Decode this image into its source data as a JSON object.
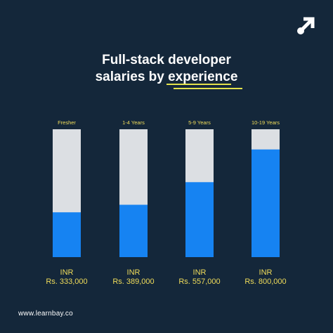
{
  "brand": {
    "logo_icon": "arrow-up-right-icon",
    "footer_url": "www.learnbay.co"
  },
  "chart_data": {
    "type": "bar",
    "title_line1": "Full-stack developer",
    "title_line2": "salaries by experience",
    "categories": [
      "Fresher",
      "1-4 Years",
      "5-9 Years",
      "10-19 Years"
    ],
    "values": [
      333000,
      389000,
      557000,
      800000
    ],
    "value_labels": [
      [
        "INR",
        "Rs. 333,000"
      ],
      [
        "INR",
        "Rs. 389,000"
      ],
      [
        "INR",
        "Rs. 557,000"
      ],
      [
        "INR",
        "Rs. 800,000"
      ]
    ],
    "ylim": [
      0,
      950000
    ],
    "grid": false,
    "colors": {
      "background": "#14273a",
      "bar_fill": "#1683f2",
      "bar_track": "#dcdfe3",
      "category_label": "#f0dc5a",
      "value_label": "#f0dc5a",
      "accent_underline": "#e2e24c"
    }
  }
}
